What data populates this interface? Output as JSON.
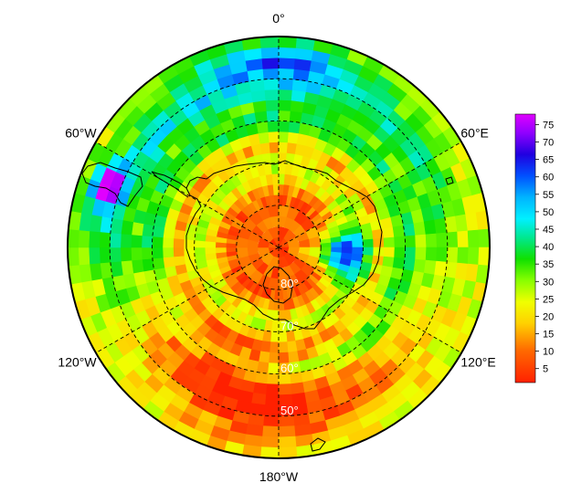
{
  "map": {
    "projection": "south-polar-stereographic",
    "center": "South Pole",
    "longitude_labels": [
      {
        "lon": 0,
        "text": "0°"
      },
      {
        "lon": 60,
        "text": "60°E"
      },
      {
        "lon": 120,
        "text": "120°E"
      },
      {
        "lon": 180,
        "text": "180°W"
      },
      {
        "lon": -120,
        "text": "120°W"
      },
      {
        "lon": -60,
        "text": "60°W"
      }
    ],
    "latitude_labels": [
      {
        "lat": -80,
        "text": "80°"
      },
      {
        "lat": -70,
        "text": "70°"
      },
      {
        "lat": -60,
        "text": "60°"
      },
      {
        "lat": -50,
        "text": "50°"
      }
    ],
    "latitude_circles": [
      -80,
      -70,
      -60,
      -50
    ],
    "meridians": [
      0,
      60,
      120,
      180,
      -120,
      -60
    ],
    "outer_latitude": -40,
    "grid_lines": "dashed",
    "coastlines": "Antarctica and southern tips of South America, Africa, New Zealand"
  },
  "colorbar": {
    "ticks": [
      "75",
      "70",
      "65",
      "60",
      "55",
      "50",
      "45",
      "40",
      "35",
      "30",
      "25",
      "20",
      "15",
      "10",
      "5"
    ],
    "min": 1,
    "max": 78,
    "palette": "rainbow red-to-magenta",
    "position": "right"
  }
}
